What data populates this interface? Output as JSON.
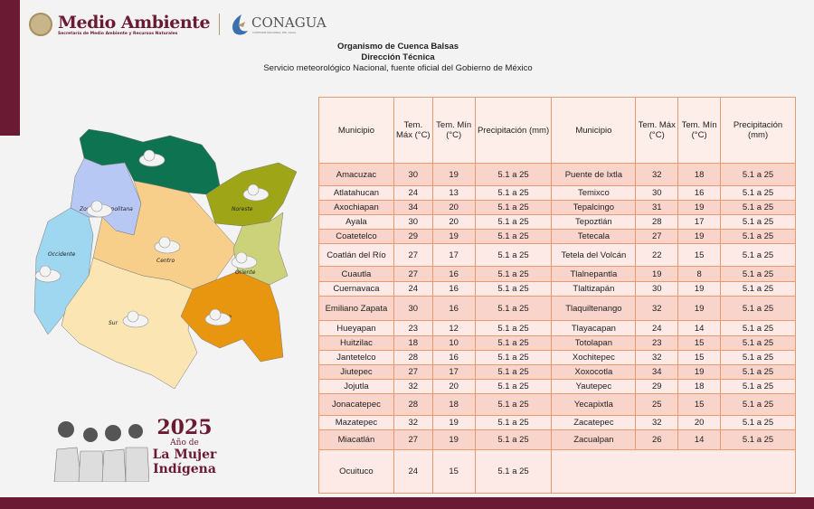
{
  "header": {
    "brand": "Medio Ambiente",
    "brand_sub": "Secretaría de Medio Ambiente y Recursos Naturales",
    "partner": "CONAGUA",
    "partner_sub": "COMISIÓN NACIONAL DEL AGUA"
  },
  "titles": {
    "line1": "Organismo de Cuenca Balsas",
    "line2": "Dirección Técnica",
    "line3": "Servicio meteorológico Nacional, fuente oficial del Gobierno de México"
  },
  "table": {
    "headers": [
      "Municipio",
      "Tem. Máx (°C)",
      "Tem. Mín (°C)",
      "Precipitación (mm)",
      "Municipio",
      "Tem. Máx (°C)",
      "Tem. Mín (°C)",
      "Precipitación (mm)"
    ],
    "rows": [
      [
        [
          "Amacuzac",
          "30",
          "19",
          "5.1 a 25"
        ],
        [
          "Puente de Ixtla",
          "32",
          "18",
          "5.1 a 25"
        ]
      ],
      [
        [
          "Atlatahucan",
          "24",
          "13",
          "5.1 a 25"
        ],
        [
          "Temixco",
          "30",
          "16",
          "5.1 a 25"
        ]
      ],
      [
        [
          "Axochiapan",
          "34",
          "20",
          "5.1 a 25"
        ],
        [
          "Tepalcingo",
          "31",
          "19",
          "5.1 a 25"
        ]
      ],
      [
        [
          "Ayala",
          "30",
          "20",
          "5.1 a 25"
        ],
        [
          "Tepoztlán",
          "28",
          "17",
          "5.1 a 25"
        ]
      ],
      [
        [
          "Coatetelco",
          "29",
          "19",
          "5.1 a 25"
        ],
        [
          "Tetecala",
          "27",
          "19",
          "5.1 a 25"
        ]
      ],
      [
        [
          "Coatlán del Río",
          "27",
          "17",
          "5.1 a 25"
        ],
        [
          "Tetela del Volcán",
          "22",
          "15",
          "5.1 a 25"
        ]
      ],
      [
        [
          "Cuautla",
          "27",
          "16",
          "5.1 a 25"
        ],
        [
          "Tlalnepantla",
          "19",
          "8",
          "5.1 a 25"
        ]
      ],
      [
        [
          "Cuernavaca",
          "24",
          "16",
          "5.1 a 25"
        ],
        [
          "Tlaltizapán",
          "30",
          "19",
          "5.1 a 25"
        ]
      ],
      [
        [
          "Emiliano Zapata",
          "30",
          "16",
          "5.1 a 25"
        ],
        [
          "Tlaquiltenango",
          "32",
          "19",
          "5.1 a 25"
        ]
      ],
      [
        [
          "Hueyapan",
          "23",
          "12",
          "5.1 a 25"
        ],
        [
          "Tlayacapan",
          "24",
          "14",
          "5.1 a 25"
        ]
      ],
      [
        [
          "Huitzilac",
          "18",
          "10",
          "5.1 a 25"
        ],
        [
          "Totolapan",
          "23",
          "15",
          "5.1 a 25"
        ]
      ],
      [
        [
          "Jantetelco",
          "28",
          "16",
          "5.1 a 25"
        ],
        [
          "Xochitepec",
          "32",
          "15",
          "5.1 a 25"
        ]
      ],
      [
        [
          "Jiutepec",
          "27",
          "17",
          "5.1 a 25"
        ],
        [
          "Xoxocotla",
          "34",
          "19",
          "5.1 a 25"
        ]
      ],
      [
        [
          "Jojutla",
          "32",
          "20",
          "5.1 a 25"
        ],
        [
          "Yautepec",
          "29",
          "18",
          "5.1 a 25"
        ]
      ],
      [
        [
          "Jonacatepec",
          "28",
          "18",
          "5.1 a 25"
        ],
        [
          "Yecapixtla",
          "25",
          "15",
          "5.1 a 25"
        ]
      ],
      [
        [
          "Mazatepec",
          "32",
          "19",
          "5.1 a 25"
        ],
        [
          "Zacatepec",
          "32",
          "20",
          "5.1 a 25"
        ]
      ],
      [
        [
          "Miacatlán",
          "27",
          "19",
          "5.1 a 25"
        ],
        [
          "Zacualpan",
          "26",
          "14",
          "5.1 a 25"
        ]
      ],
      [
        [
          "Ocuituco",
          "24",
          "15",
          "5.1 a 25"
        ],
        null
      ]
    ]
  },
  "map": {
    "regions": [
      {
        "name": "",
        "color": "#0e7350",
        "icon": "rain-cloud-icon"
      },
      {
        "name": "Zona Metropolitana",
        "color": "#b8c8f5",
        "icon": "rain-cloud-icon"
      },
      {
        "name": "Noreste",
        "color": "#9ea617",
        "icon": "rain-cloud-icon"
      },
      {
        "name": "Occidente",
        "color": "#9fd7f0",
        "icon": "rain-cloud-icon"
      },
      {
        "name": "Centro",
        "color": "#f8cf8a",
        "icon": "rain-cloud-icon"
      },
      {
        "name": "Oriente",
        "color": "#ccd27a",
        "icon": "rain-cloud-icon"
      },
      {
        "name": "Sur",
        "color": "#fbe6b3",
        "icon": "rain-cloud-icon"
      },
      {
        "name": "Sureste",
        "color": "#e8960f",
        "icon": "rain-cloud-icon"
      }
    ]
  },
  "banner": {
    "year": "2025",
    "line1": "Año de",
    "line2": "La Mujer",
    "line3": "Indígena"
  },
  "colors": {
    "brand": "#6b1a33",
    "row_dark": "#f9d4cb",
    "row_light": "#fdeae6",
    "border": "#e89a6e"
  }
}
